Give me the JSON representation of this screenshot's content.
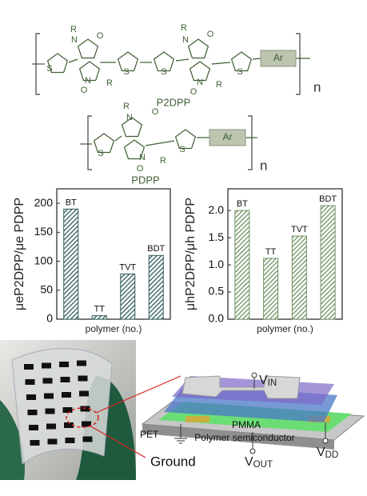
{
  "structures": [
    {
      "name": "P2DPP",
      "repeat": "n",
      "end_group": "Ar",
      "atoms": [
        "R",
        "N",
        "O",
        "N",
        "R",
        "O",
        "S",
        "S",
        "S",
        "R",
        "N",
        "O",
        "N",
        "R",
        "O",
        "S"
      ]
    },
    {
      "name": "PDPP",
      "repeat": "n",
      "end_group": "Ar",
      "atoms": [
        "R",
        "N",
        "O",
        "N",
        "R",
        "O",
        "S",
        "S"
      ]
    }
  ],
  "chart_data": [
    {
      "type": "bar",
      "y_label": "μeP2DPP/μe PDPP",
      "x_label": "polymer (no.)",
      "categories": [
        "BT",
        "TT",
        "TVT",
        "BDT"
      ],
      "values": [
        190,
        6,
        78,
        110
      ],
      "color": "#2e5c5a",
      "ylim": [
        0,
        225
      ],
      "yticks": [
        0,
        50,
        100,
        150,
        200
      ]
    },
    {
      "type": "bar",
      "y_label": "μhP2DPP/μh PDPP",
      "x_label": "polymer (no.)",
      "categories": [
        "BT",
        "TT",
        "TVT",
        "BDT"
      ],
      "values": [
        2.0,
        1.12,
        1.53,
        2.09
      ],
      "color": "#6f9160",
      "ylim": [
        0,
        2.4
      ],
      "yticks": [
        {
          "value": 0,
          "label": "0.0"
        },
        {
          "value": 0.5,
          "label": "0.5"
        },
        {
          "value": 1,
          "label": "1.0"
        },
        {
          "value": 1.5,
          "label": "1.5"
        },
        {
          "value": 2,
          "label": "2.0"
        }
      ]
    }
  ],
  "device": {
    "ground": "Ground",
    "v_in": [
      "V",
      "IN"
    ],
    "v_out": [
      "V",
      "OUT"
    ],
    "v_dd": [
      "V",
      "DD"
    ],
    "layers": [
      "PMMA",
      "Polymer semiconductor",
      "PET"
    ]
  }
}
